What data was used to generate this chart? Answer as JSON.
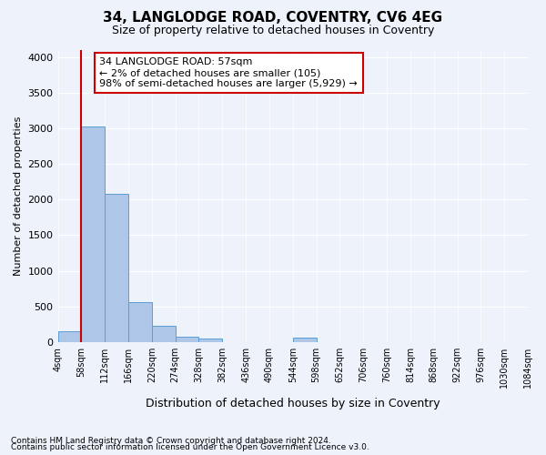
{
  "title1": "34, LANGLODGE ROAD, COVENTRY, CV6 4EG",
  "title2": "Size of property relative to detached houses in Coventry",
  "xlabel": "Distribution of detached houses by size in Coventry",
  "ylabel": "Number of detached properties",
  "footnote1": "Contains HM Land Registry data © Crown copyright and database right 2024.",
  "footnote2": "Contains public sector information licensed under the Open Government Licence v3.0.",
  "annotation_line1": "34 LANGLODGE ROAD: 57sqm",
  "annotation_line2": "← 2% of detached houses are smaller (105)",
  "annotation_line3": "98% of semi-detached houses are larger (5,929) →",
  "property_sqm": 57,
  "bar_edges": [
    4,
    58,
    112,
    166,
    220,
    274,
    328,
    382,
    436,
    490,
    544,
    598,
    652,
    706,
    760,
    814,
    868,
    922,
    976,
    1030,
    1084
  ],
  "bar_heights": [
    150,
    3020,
    2075,
    560,
    230,
    80,
    50,
    0,
    0,
    0,
    60,
    0,
    0,
    0,
    0,
    0,
    0,
    0,
    0,
    0
  ],
  "bar_color": "#aec6e8",
  "bar_edgecolor": "#5a9fd4",
  "vline_color": "#cc0000",
  "vline_x": 57,
  "annotation_box_color": "#cc0000",
  "ylim": [
    0,
    4100
  ],
  "yticks": [
    0,
    500,
    1000,
    1500,
    2000,
    2500,
    3000,
    3500,
    4000
  ],
  "bg_color": "#eef2fb",
  "grid_color": "#ffffff"
}
